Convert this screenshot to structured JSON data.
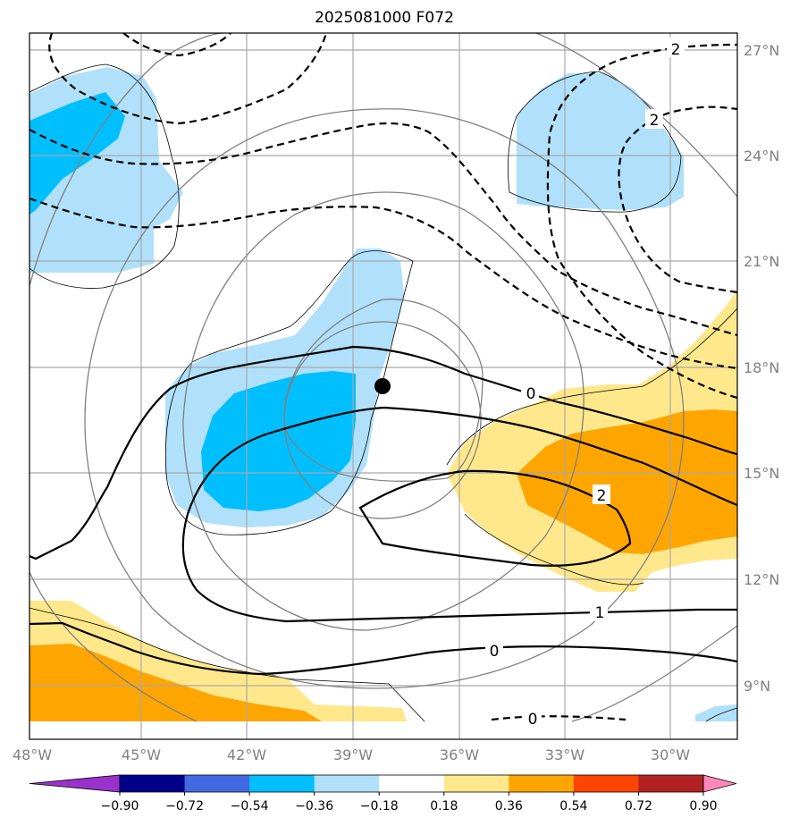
{
  "title": "2025081000 F072",
  "longitude_labels": [
    "48°W",
    "45°W",
    "42°W",
    "39°W",
    "36°W",
    "33°W",
    "30°W"
  ],
  "latitude_labels": [
    "27°N",
    "24°N",
    "21°N",
    "18°N",
    "15°N",
    "12°N",
    "9°N"
  ],
  "contour_labels": {
    "zero_mid": "0",
    "two_mid": "2",
    "one_low": "1",
    "zero_low": "0",
    "zero_bottom": "0",
    "two_top": "2",
    "two_upper": "2"
  },
  "colorbar": {
    "ticks": [
      "−0.90",
      "−0.72",
      "−0.54",
      "−0.36",
      "−0.18",
      "0.18",
      "0.36",
      "0.54",
      "0.72",
      "0.90"
    ],
    "colors": [
      "#9932cc",
      "#00008b",
      "#4169e1",
      "#00bfff",
      "#b0e0fa",
      "#ffffff",
      "#ffe88c",
      "#ffa500",
      "#ff4500",
      "#b22222",
      "#ff88b8"
    ]
  },
  "storm_center": {
    "lon": -38.2,
    "lat": 17.5
  }
}
